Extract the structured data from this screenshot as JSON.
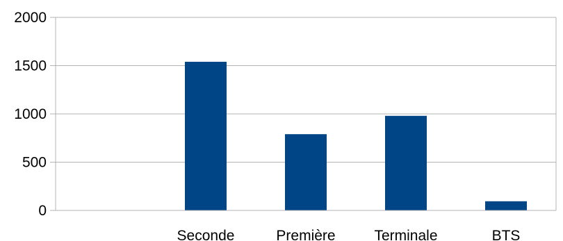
{
  "chart_data": {
    "type": "bar",
    "categories": [
      "",
      "Seconde",
      "Première",
      "Terminale",
      "BTS"
    ],
    "values": [
      0,
      1540,
      790,
      980,
      95
    ],
    "ylim": [
      0,
      2000
    ],
    "yticks": [
      0,
      500,
      1000,
      1500,
      2000
    ],
    "grid": true,
    "legend": "none",
    "colors": {
      "bar": "#004586",
      "grid": "#b3b3b3",
      "axis": "#b3b3b3"
    }
  }
}
